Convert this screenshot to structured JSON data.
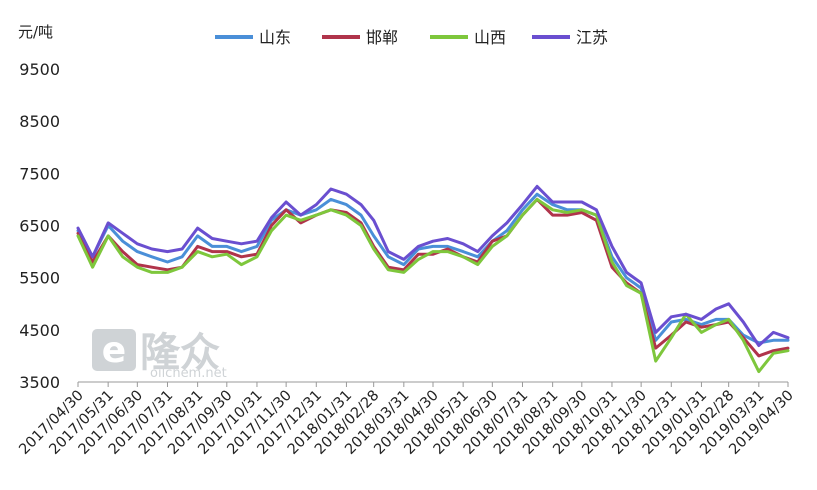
{
  "chart_data": {
    "type": "line",
    "y_unit_label": "元/吨",
    "ylim": [
      3500,
      9500
    ],
    "y_ticks": [
      3500,
      4500,
      5500,
      6500,
      7500,
      8500,
      9500
    ],
    "x_tick_labels": [
      "2017/04/30",
      "2017/05/31",
      "2017/06/30",
      "2017/07/31",
      "2017/08/31",
      "2017/09/30",
      "2017/10/31",
      "2017/11/30",
      "2017/12/31",
      "2018/01/31",
      "2018/02/28",
      "2018/03/31",
      "2018/04/30",
      "2018/05/31",
      "2018/06/30",
      "2018/07/31",
      "2018/08/31",
      "2018/09/30",
      "2018/10/31",
      "2018/11/30",
      "2018/12/31",
      "2019/01/31",
      "2019/02/28",
      "2019/03/31",
      "2019/04/30"
    ],
    "legend_position": "top-center",
    "grid": false,
    "x": [
      "2017/04/30",
      "2017/05/15",
      "2017/05/31",
      "2017/06/15",
      "2017/06/30",
      "2017/07/15",
      "2017/07/31",
      "2017/08/15",
      "2017/08/31",
      "2017/09/15",
      "2017/09/30",
      "2017/10/15",
      "2017/10/31",
      "2017/11/15",
      "2017/11/30",
      "2017/12/15",
      "2017/12/31",
      "2018/01/15",
      "2018/01/31",
      "2018/02/15",
      "2018/02/28",
      "2018/03/15",
      "2018/03/31",
      "2018/04/15",
      "2018/04/30",
      "2018/05/15",
      "2018/05/31",
      "2018/06/15",
      "2018/06/30",
      "2018/07/15",
      "2018/07/31",
      "2018/08/15",
      "2018/08/31",
      "2018/09/15",
      "2018/09/30",
      "2018/10/15",
      "2018/10/31",
      "2018/11/15",
      "2018/11/30",
      "2018/12/15",
      "2018/12/31",
      "2019/01/15",
      "2019/01/31",
      "2019/02/15",
      "2019/02/28",
      "2019/03/15",
      "2019/03/31",
      "2019/04/15",
      "2019/04/30"
    ],
    "series": [
      {
        "name": "山东",
        "color": "#4a8fd8",
        "values": [
          6400,
          5900,
          6500,
          6200,
          6000,
          5900,
          5800,
          5900,
          6300,
          6100,
          6100,
          6000,
          6100,
          6600,
          6800,
          6700,
          6800,
          7000,
          6900,
          6700,
          6300,
          5900,
          5750,
          6050,
          6100,
          6100,
          6000,
          5900,
          6200,
          6400,
          6800,
          7100,
          6900,
          6800,
          6800,
          6700,
          5900,
          5500,
          5300,
          4300,
          4650,
          4700,
          4600,
          4700,
          4700,
          4400,
          4250,
          4300,
          4300
        ]
      },
      {
        "name": "邯郸",
        "color": "#b0344b",
        "values": [
          6350,
          5800,
          6300,
          6000,
          5750,
          5700,
          5650,
          5700,
          6100,
          6000,
          6000,
          5900,
          5950,
          6500,
          6800,
          6550,
          6700,
          6800,
          6750,
          6550,
          6100,
          5700,
          5650,
          5950,
          5950,
          6050,
          5900,
          5800,
          6200,
          6300,
          6700,
          7000,
          6700,
          6700,
          6750,
          6600,
          5700,
          5400,
          5200,
          4150,
          4400,
          4650,
          4550,
          4600,
          4650,
          4350,
          4000,
          4100,
          4150
        ]
      },
      {
        "name": "山西",
        "color": "#7ec73c",
        "values": [
          6300,
          5700,
          6300,
          5900,
          5700,
          5600,
          5600,
          5700,
          6000,
          5900,
          5950,
          5750,
          5900,
          6400,
          6700,
          6600,
          6700,
          6800,
          6700,
          6500,
          6050,
          5650,
          5600,
          5850,
          6000,
          6000,
          5900,
          5750,
          6100,
          6300,
          6700,
          7000,
          6800,
          6750,
          6800,
          6700,
          5800,
          5350,
          5200,
          3900,
          4350,
          4800,
          4450,
          4600,
          4700,
          4300,
          3700,
          4050,
          4100
        ]
      },
      {
        "name": "江苏",
        "color": "#6a4fd0",
        "values": [
          6450,
          5900,
          6550,
          6350,
          6150,
          6050,
          6000,
          6050,
          6450,
          6250,
          6200,
          6150,
          6200,
          6650,
          6950,
          6700,
          6900,
          7200,
          7100,
          6900,
          6600,
          6000,
          5850,
          6100,
          6200,
          6250,
          6150,
          6000,
          6300,
          6550,
          6900,
          7250,
          6950,
          6950,
          6950,
          6800,
          6100,
          5600,
          5400,
          4450,
          4750,
          4800,
          4700,
          4900,
          5000,
          4650,
          4200,
          4450,
          4350
        ]
      }
    ]
  },
  "watermark": {
    "main": "隆众",
    "sub": "oilchem.net"
  }
}
